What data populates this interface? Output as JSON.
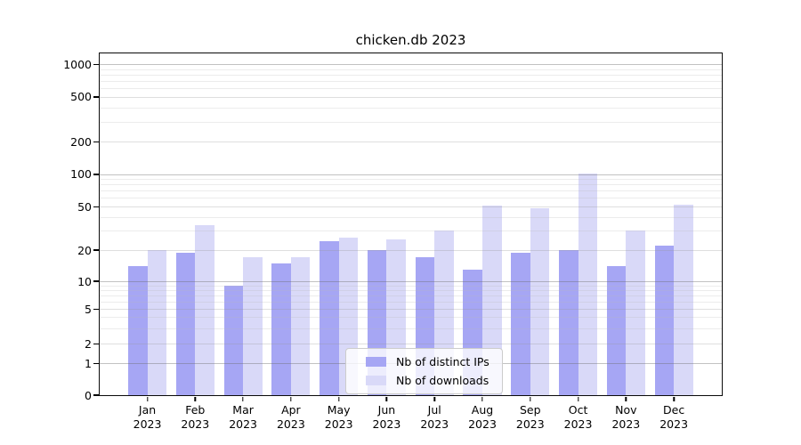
{
  "chart_data": {
    "type": "bar",
    "title": "chicken.db 2023",
    "months": [
      "Jan",
      "Feb",
      "Mar",
      "Apr",
      "May",
      "Jun",
      "Jul",
      "Aug",
      "Sep",
      "Oct",
      "Nov",
      "Dec"
    ],
    "year": "2023",
    "yscale": "symlog",
    "y_ticks": [
      0,
      1,
      2,
      5,
      10,
      20,
      50,
      100,
      200,
      500,
      1000
    ],
    "ylim": [
      0,
      1300
    ],
    "grid": "both",
    "legend_position": "lower center",
    "series": [
      {
        "name": "Nb of distinct IPs",
        "color": "#a6a6f4",
        "values": [
          14,
          19,
          9,
          15,
          24,
          20,
          17,
          13,
          19,
          20,
          14,
          22
        ]
      },
      {
        "name": "Nb of downloads",
        "color": "#d9d9f8",
        "values": [
          20,
          34,
          17,
          17,
          26,
          25,
          30,
          51,
          48,
          101,
          30,
          52
        ]
      }
    ]
  }
}
